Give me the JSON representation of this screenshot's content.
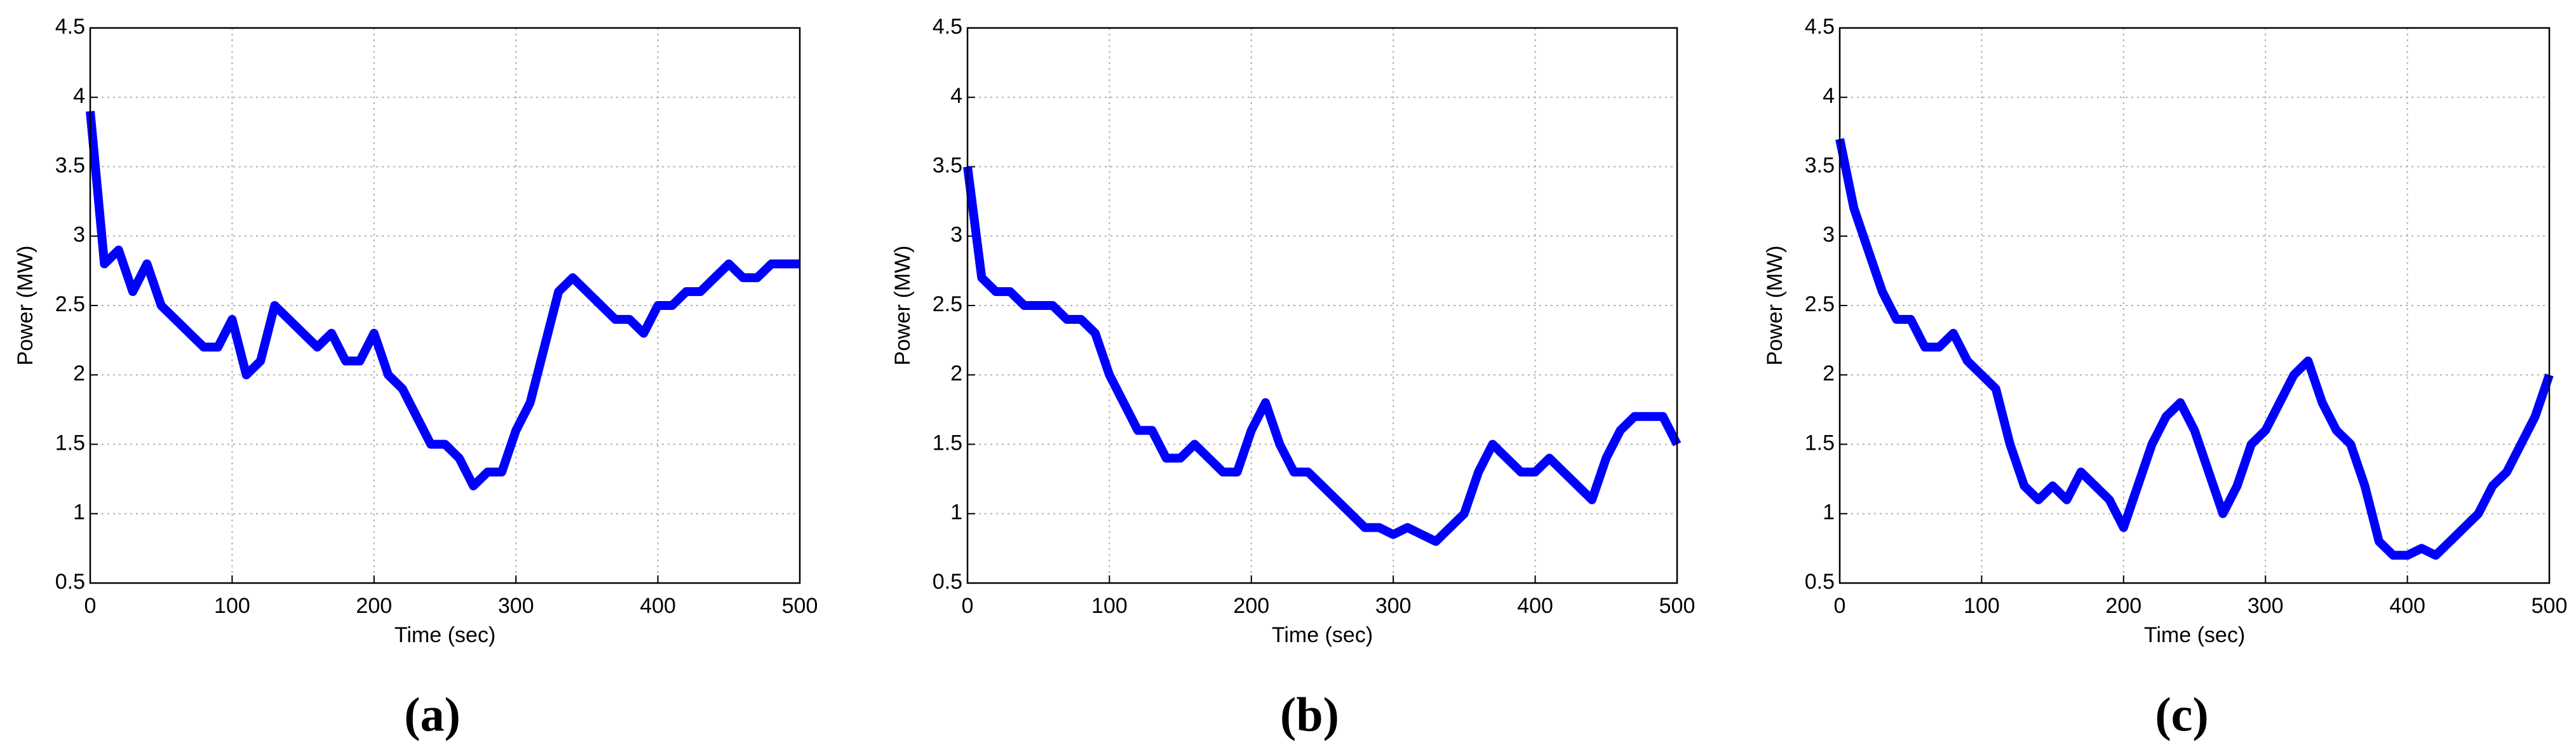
{
  "chart_data": [
    {
      "type": "line",
      "label": "(a)",
      "xlabel": "Time (sec)",
      "ylabel": "Power (MW)",
      "x": [
        0,
        10,
        20,
        30,
        40,
        50,
        60,
        70,
        80,
        90,
        100,
        110,
        120,
        130,
        140,
        150,
        160,
        170,
        180,
        190,
        200,
        210,
        220,
        230,
        240,
        250,
        260,
        270,
        280,
        290,
        300,
        310,
        320,
        330,
        340,
        350,
        360,
        370,
        380,
        390,
        400,
        410,
        420,
        430,
        440,
        450,
        460,
        470,
        480,
        490,
        500
      ],
      "series": [
        {
          "color": "#0000ff",
          "values": [
            3.9,
            2.8,
            2.9,
            2.6,
            2.8,
            2.5,
            2.4,
            2.3,
            2.2,
            2.2,
            2.4,
            2.0,
            2.1,
            2.5,
            2.4,
            2.3,
            2.2,
            2.3,
            2.1,
            2.1,
            2.3,
            2.0,
            1.9,
            1.7,
            1.5,
            1.5,
            1.4,
            1.2,
            1.3,
            1.3,
            1.6,
            1.8,
            2.2,
            2.6,
            2.7,
            2.6,
            2.5,
            2.4,
            2.4,
            2.3,
            2.5,
            2.5,
            2.6,
            2.6,
            2.7,
            2.8,
            2.7,
            2.7,
            2.8,
            2.8,
            2.8
          ]
        }
      ],
      "xlim": [
        0,
        500
      ],
      "xticks": [
        0,
        100,
        200,
        300,
        400,
        500
      ],
      "ylim": [
        0.5,
        4.5
      ],
      "yticks": [
        0.5,
        1,
        1.5,
        2,
        2.5,
        3,
        3.5,
        4,
        4.5
      ],
      "grid": true
    },
    {
      "type": "line",
      "label": "(b)",
      "xlabel": "Time (sec)",
      "ylabel": "Power (MW)",
      "x": [
        0,
        10,
        20,
        30,
        40,
        50,
        60,
        70,
        80,
        90,
        100,
        110,
        120,
        130,
        140,
        150,
        160,
        170,
        180,
        190,
        200,
        210,
        220,
        230,
        240,
        250,
        260,
        270,
        280,
        290,
        300,
        310,
        320,
        330,
        340,
        350,
        360,
        370,
        380,
        390,
        400,
        410,
        420,
        430,
        440,
        450,
        460,
        470,
        480,
        490,
        500
      ],
      "series": [
        {
          "color": "#0000ff",
          "values": [
            3.5,
            2.7,
            2.6,
            2.6,
            2.5,
            2.5,
            2.5,
            2.4,
            2.4,
            2.3,
            2.0,
            1.8,
            1.6,
            1.6,
            1.4,
            1.4,
            1.5,
            1.4,
            1.3,
            1.3,
            1.6,
            1.8,
            1.5,
            1.3,
            1.3,
            1.2,
            1.1,
            1.0,
            0.9,
            0.9,
            0.85,
            0.9,
            0.85,
            0.8,
            0.9,
            1.0,
            1.3,
            1.5,
            1.4,
            1.3,
            1.3,
            1.4,
            1.3,
            1.2,
            1.1,
            1.4,
            1.6,
            1.7,
            1.7,
            1.7,
            1.5
          ]
        }
      ],
      "xlim": [
        0,
        500
      ],
      "xticks": [
        0,
        100,
        200,
        300,
        400,
        500
      ],
      "ylim": [
        0.5,
        4.5
      ],
      "yticks": [
        0.5,
        1,
        1.5,
        2,
        2.5,
        3,
        3.5,
        4,
        4.5
      ],
      "grid": true
    },
    {
      "type": "line",
      "label": "(c)",
      "xlabel": "Time (sec)",
      "ylabel": "Power (MW)",
      "x": [
        0,
        10,
        20,
        30,
        40,
        50,
        60,
        70,
        80,
        90,
        100,
        110,
        120,
        130,
        140,
        150,
        160,
        170,
        180,
        190,
        200,
        210,
        220,
        230,
        240,
        250,
        260,
        270,
        280,
        290,
        300,
        310,
        320,
        330,
        340,
        350,
        360,
        370,
        380,
        390,
        400,
        410,
        420,
        430,
        440,
        450,
        460,
        470,
        480,
        490,
        500
      ],
      "series": [
        {
          "color": "#0000ff",
          "values": [
            3.7,
            3.2,
            2.9,
            2.6,
            2.4,
            2.4,
            2.2,
            2.2,
            2.3,
            2.1,
            2.0,
            1.9,
            1.5,
            1.2,
            1.1,
            1.2,
            1.1,
            1.3,
            1.2,
            1.1,
            0.9,
            1.2,
            1.5,
            1.7,
            1.8,
            1.6,
            1.3,
            1.0,
            1.2,
            1.5,
            1.6,
            1.8,
            2.0,
            2.1,
            1.8,
            1.6,
            1.5,
            1.2,
            0.8,
            0.7,
            0.7,
            0.75,
            0.7,
            0.8,
            0.9,
            1.0,
            1.2,
            1.3,
            1.5,
            1.7,
            2.0
          ]
        }
      ],
      "xlim": [
        0,
        500
      ],
      "xticks": [
        0,
        100,
        200,
        300,
        400,
        500
      ],
      "ylim": [
        0.5,
        4.5
      ],
      "yticks": [
        0.5,
        1,
        1.5,
        2,
        2.5,
        3,
        3.5,
        4,
        4.5
      ],
      "grid": true
    }
  ]
}
